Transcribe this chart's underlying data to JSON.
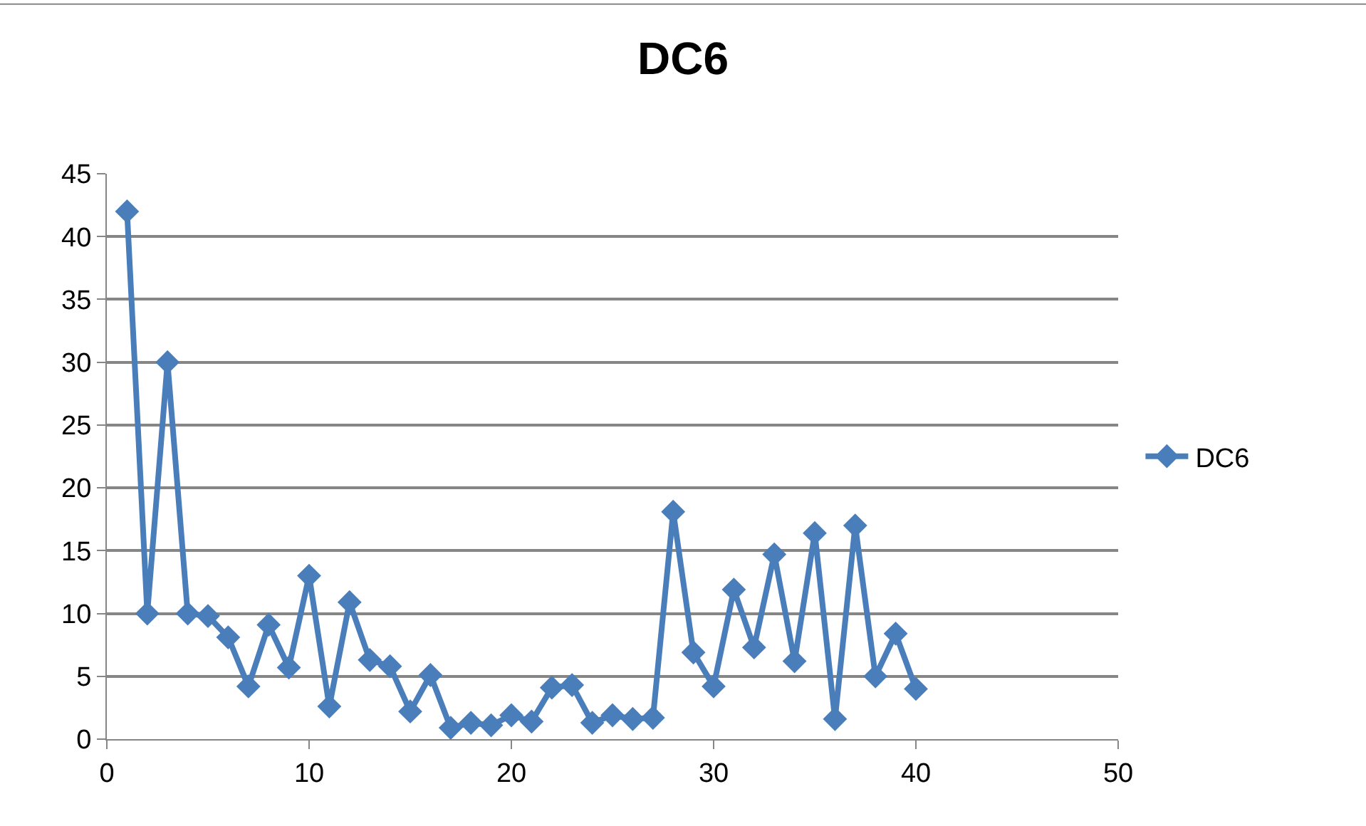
{
  "chart_data": {
    "type": "line",
    "title": "DC6",
    "x": [
      1,
      2,
      3,
      4,
      5,
      6,
      7,
      8,
      9,
      10,
      11,
      12,
      13,
      14,
      15,
      16,
      17,
      18,
      19,
      20,
      21,
      22,
      23,
      24,
      25,
      26,
      27,
      28,
      29,
      30,
      31,
      32,
      33,
      34,
      35,
      36,
      37,
      38,
      39,
      40
    ],
    "series": [
      {
        "name": "DC6",
        "color": "#4a7ebb",
        "values": [
          42,
          10,
          30,
          10,
          9.8,
          8.1,
          4.2,
          9.1,
          5.7,
          13,
          2.6,
          10.9,
          6.3,
          5.8,
          2.2,
          5.1,
          0.9,
          1.3,
          1.1,
          1.9,
          1.4,
          4.1,
          4.3,
          1.3,
          1.9,
          1.6,
          1.7,
          18.1,
          6.9,
          4.2,
          11.9,
          7.3,
          14.7,
          6.2,
          16.4,
          1.6,
          17,
          5,
          8.4,
          4
        ]
      }
    ],
    "xlim": [
      0,
      50
    ],
    "xticks": [
      0,
      10,
      20,
      30,
      40,
      50
    ],
    "ylim": [
      0,
      45
    ],
    "yticks": [
      0,
      5,
      10,
      15,
      20,
      25,
      30,
      35,
      40,
      45
    ],
    "grid": "y",
    "legend": "right",
    "marker": "diamond",
    "line_style": "solid"
  }
}
